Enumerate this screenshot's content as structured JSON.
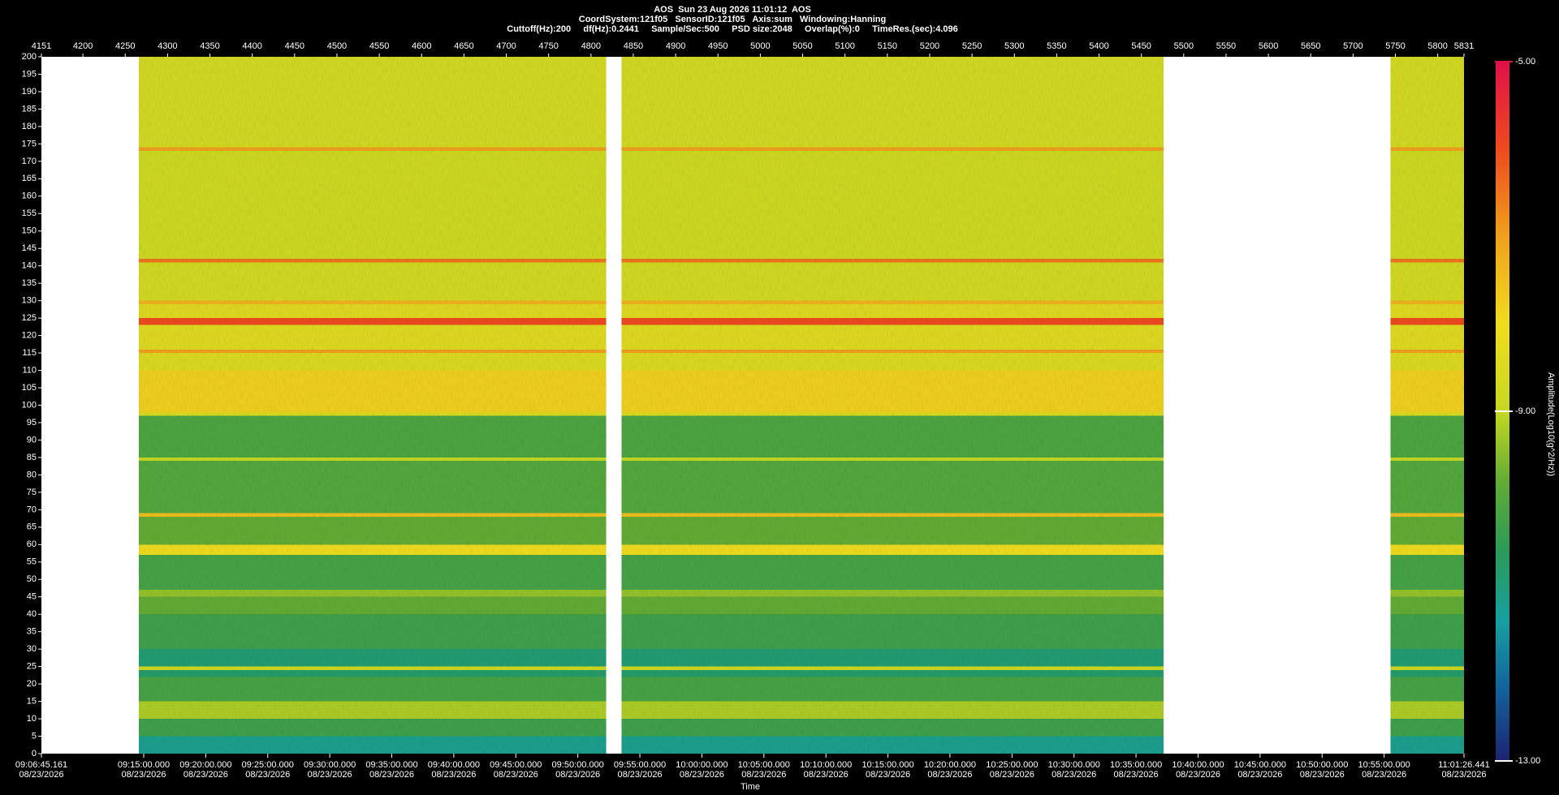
{
  "chart_data": {
    "type": "spectrogram",
    "title": "AOS  Sun 23 Aug 2026 11:01:12  AOS",
    "subtitles": [
      "CoordSystem:121f05   SensorID:121f05   Axis:sum   Windowing:Hanning",
      "Cuttoff(Hz):200     df(Hz):0.2441     Sample/Sec:500     PSD size:2048     Overlap(%):0     TimeRes.(sec):4.096"
    ],
    "xlabel": "Time",
    "colorbar_label": "Amplitude(Log10(g^2/Hz))",
    "date": "08/23/2026",
    "xlim": [
      4151,
      5831
    ],
    "xticks": [
      4151,
      4200,
      4250,
      4300,
      4350,
      4400,
      4450,
      4500,
      4550,
      4600,
      4650,
      4700,
      4750,
      4800,
      4850,
      4900,
      4950,
      5000,
      5050,
      5100,
      5150,
      5200,
      5250,
      5300,
      5350,
      5400,
      5450,
      5500,
      5550,
      5600,
      5650,
      5700,
      5750,
      5800,
      5831
    ],
    "x2ticks": [
      {
        "value": 4151,
        "label": "09:06:45.161"
      },
      {
        "value": 4271.81,
        "label": "09:15:00.000"
      },
      {
        "value": 4345.05,
        "label": "09:20:00.000"
      },
      {
        "value": 4418.3,
        "label": "09:25:00.000"
      },
      {
        "value": 4491.54,
        "label": "09:30:00.000"
      },
      {
        "value": 4564.78,
        "label": "09:35:00.000"
      },
      {
        "value": 4638.02,
        "label": "09:40:00.000"
      },
      {
        "value": 4711.27,
        "label": "09:45:00.000"
      },
      {
        "value": 4784.51,
        "label": "09:50:00.000"
      },
      {
        "value": 4857.75,
        "label": "09:55:00.000"
      },
      {
        "value": 4930.99,
        "label": "10:00:00.000"
      },
      {
        "value": 5004.24,
        "label": "10:05:00.000"
      },
      {
        "value": 5077.48,
        "label": "10:10:00.000"
      },
      {
        "value": 5150.72,
        "label": "10:15:00.000"
      },
      {
        "value": 5223.96,
        "label": "10:20:00.000"
      },
      {
        "value": 5297.21,
        "label": "10:25:00.000"
      },
      {
        "value": 5370.45,
        "label": "10:30:00.000"
      },
      {
        "value": 5443.69,
        "label": "10:35:00.000"
      },
      {
        "value": 5516.94,
        "label": "10:40:00.000"
      },
      {
        "value": 5590.18,
        "label": "10:45:00.000"
      },
      {
        "value": 5663.42,
        "label": "10:50:00.000"
      },
      {
        "value": 5736.66,
        "label": "10:55:00.000"
      },
      {
        "value": 5831,
        "label": "11:01:26.441"
      }
    ],
    "ylim": [
      0,
      200
    ],
    "yticks": [
      0,
      5,
      10,
      15,
      20,
      25,
      30,
      35,
      40,
      45,
      50,
      55,
      60,
      65,
      70,
      75,
      80,
      85,
      90,
      95,
      100,
      105,
      110,
      115,
      120,
      125,
      130,
      135,
      140,
      145,
      150,
      155,
      160,
      165,
      170,
      175,
      180,
      185,
      190,
      195,
      200
    ],
    "clim": [
      -13,
      -5
    ],
    "cticks": [
      {
        "value": -13,
        "label": "-13.00"
      },
      {
        "value": -9,
        "label": "-9.00"
      },
      {
        "value": -5,
        "label": "-5.00"
      }
    ],
    "colormap": [
      {
        "value": -13,
        "color": "#1d2470"
      },
      {
        "value": -12.2,
        "color": "#12609a"
      },
      {
        "value": -11.4,
        "color": "#16a0a0"
      },
      {
        "value": -10.6,
        "color": "#2a9a58"
      },
      {
        "value": -9.8,
        "color": "#62ac34"
      },
      {
        "value": -9,
        "color": "#c6d822"
      },
      {
        "value": -8,
        "color": "#f0dc1e"
      },
      {
        "value": -7,
        "color": "#f0a01c"
      },
      {
        "value": -6,
        "color": "#ee4a1e"
      },
      {
        "value": -5,
        "color": "#e01048"
      }
    ],
    "segments": [
      [
        4266,
        4818
      ],
      [
        4836,
        5476
      ],
      [
        5744,
        5831
      ]
    ],
    "bands": [
      {
        "range": [
          0,
          5
        ],
        "amplitude": -11.2
      },
      {
        "range": [
          5,
          10
        ],
        "amplitude": -10.3
      },
      {
        "range": [
          10,
          15
        ],
        "amplitude": -9.2
      },
      {
        "range": [
          15,
          22
        ],
        "amplitude": -10.2
      },
      {
        "range": [
          22,
          24
        ],
        "amplitude": -10.8
      },
      {
        "range": [
          24,
          25
        ],
        "amplitude": -8.8
      },
      {
        "range": [
          25,
          30
        ],
        "amplitude": -10.9
      },
      {
        "range": [
          30,
          40
        ],
        "amplitude": -10.3
      },
      {
        "range": [
          40,
          45
        ],
        "amplitude": -9.8
      },
      {
        "range": [
          45,
          47
        ],
        "amplitude": -9.4
      },
      {
        "range": [
          47,
          57
        ],
        "amplitude": -10.2
      },
      {
        "range": [
          57,
          60
        ],
        "amplitude": -8
      },
      {
        "range": [
          60,
          68
        ],
        "amplitude": -9.8
      },
      {
        "range": [
          68,
          69
        ],
        "amplitude": -7.5
      },
      {
        "range": [
          69,
          84
        ],
        "amplitude": -10
      },
      {
        "range": [
          84,
          85
        ],
        "amplitude": -9
      },
      {
        "range": [
          85,
          97
        ],
        "amplitude": -10.1
      },
      {
        "range": [
          97,
          98
        ],
        "amplitude": -8.5
      },
      {
        "range": [
          98,
          110
        ],
        "amplitude": -7.8
      },
      {
        "range": [
          110,
          115
        ],
        "amplitude": -8.5
      },
      {
        "range": [
          115,
          116
        ],
        "amplitude": -7
      },
      {
        "range": [
          116,
          123
        ],
        "amplitude": -8.4
      },
      {
        "range": [
          123,
          125
        ],
        "amplitude": -6
      },
      {
        "range": [
          125,
          129
        ],
        "amplitude": -8.4
      },
      {
        "range": [
          129,
          130
        ],
        "amplitude": -7.3
      },
      {
        "range": [
          130,
          141
        ],
        "amplitude": -8.7
      },
      {
        "range": [
          141,
          142
        ],
        "amplitude": -6.5
      },
      {
        "range": [
          142,
          173
        ],
        "amplitude": -8.8
      },
      {
        "range": [
          173,
          174
        ],
        "amplitude": -7
      },
      {
        "range": [
          174,
          200
        ],
        "amplitude": -8.7
      }
    ]
  }
}
